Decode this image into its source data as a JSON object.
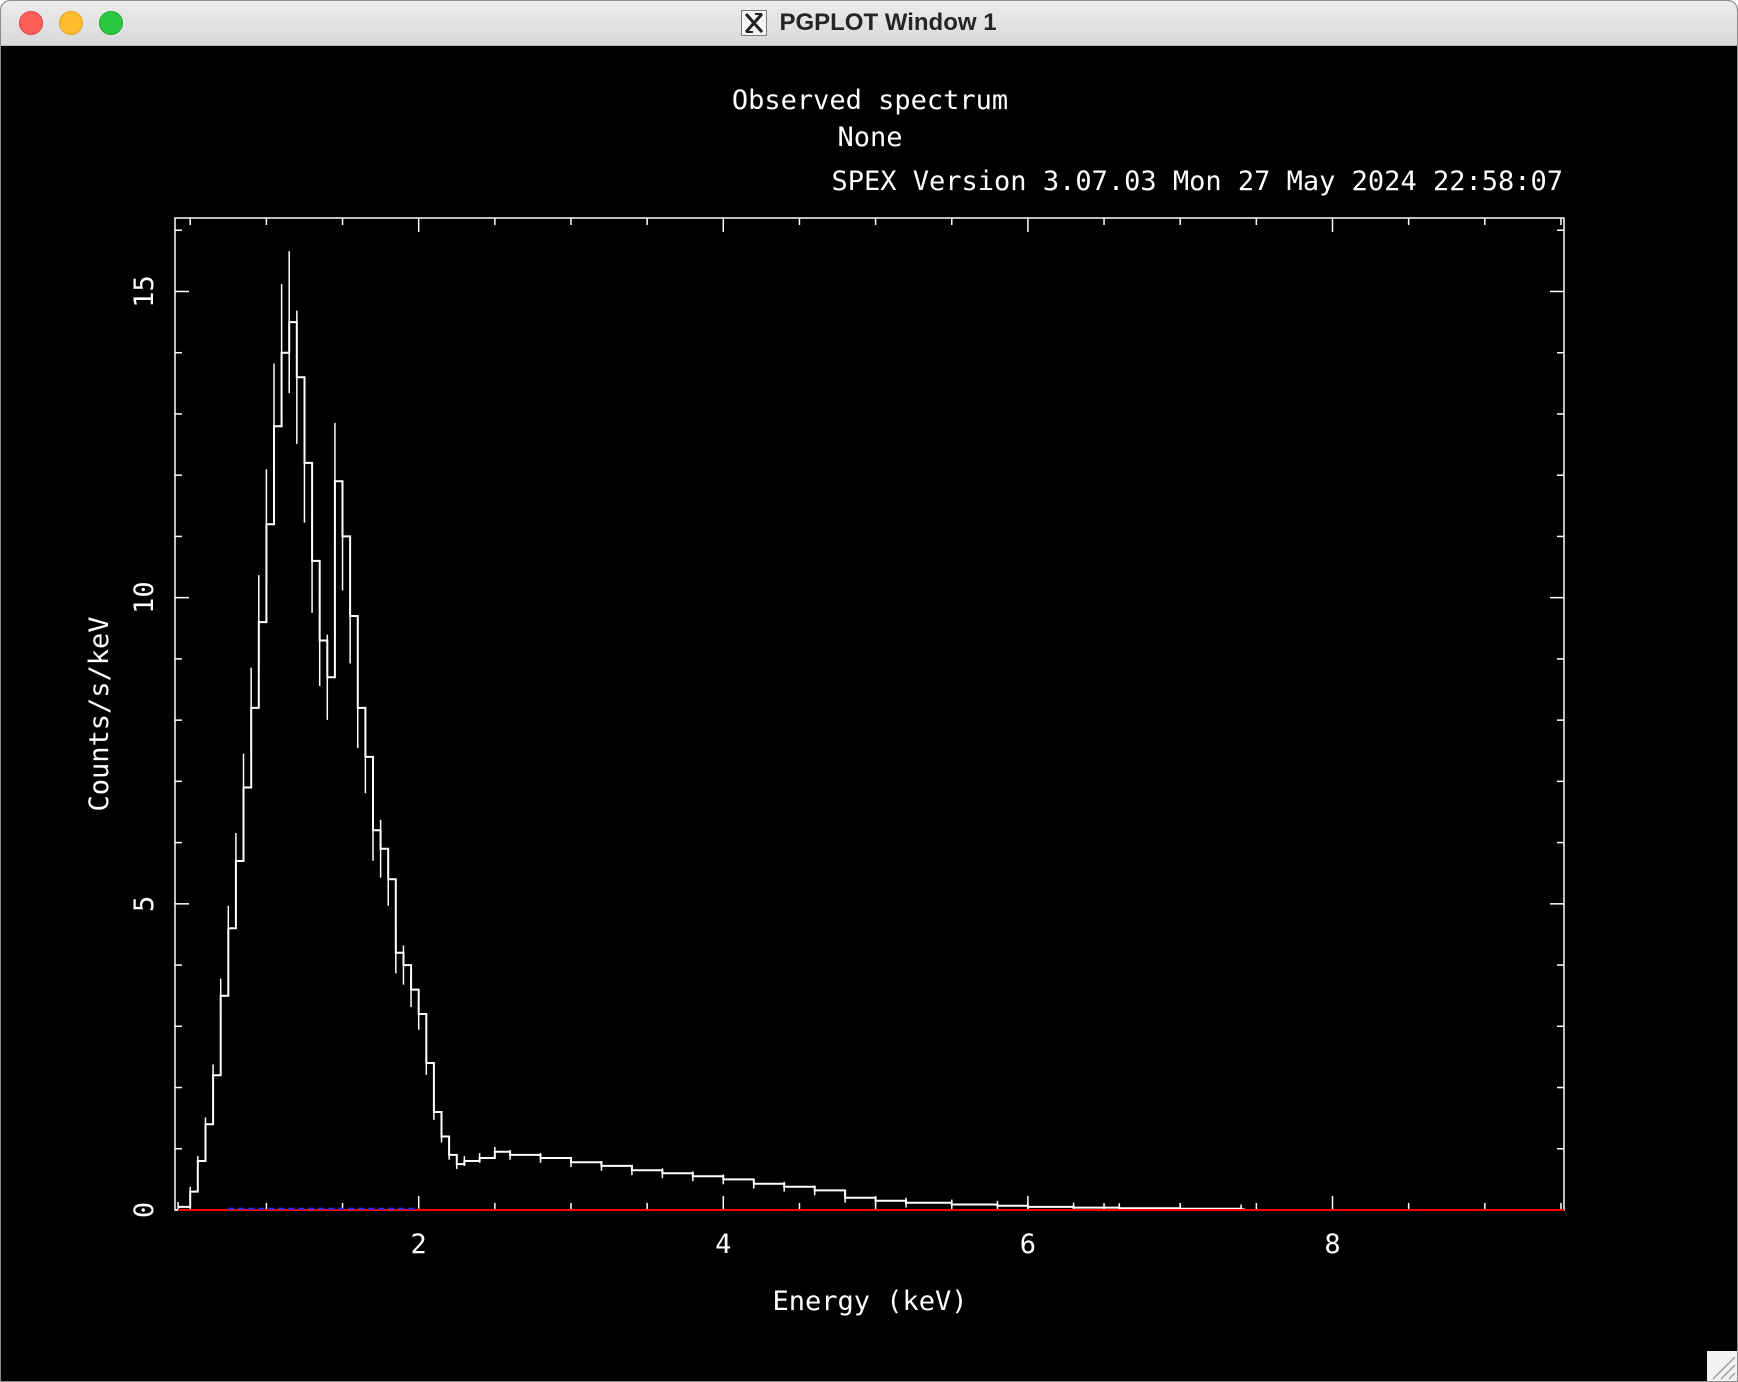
{
  "window": {
    "title": "PGPLOT Window 1",
    "icon": "x11-icon",
    "controls": [
      "close-button",
      "minimize-button",
      "zoom-button"
    ]
  },
  "header": {
    "line1": "Observed spectrum",
    "line2": "None",
    "line3": "SPEX Version 3.07.03  Mon 27 May 2024 22:58:07"
  },
  "colors": {
    "background": "#000000",
    "foreground": "#ffffff",
    "model": "#ff0000",
    "background_model": "#2a2aff"
  },
  "chart_data": {
    "type": "line",
    "title": "",
    "xlabel": "Energy (keV)",
    "ylabel": "Counts/s/keV",
    "xlim": [
      0.4,
      9.52
    ],
    "ylim": [
      0,
      16.2
    ],
    "xticks": [
      2,
      4,
      6,
      8
    ],
    "yticks": [
      0,
      5,
      10,
      15
    ],
    "grid": false,
    "series": [
      {
        "role": "data",
        "color": "#ffffff",
        "x": [
          0.42,
          0.5,
          0.55,
          0.6,
          0.65,
          0.7,
          0.75,
          0.8,
          0.85,
          0.9,
          0.95,
          1.0,
          1.05,
          1.1,
          1.15,
          1.2,
          1.25,
          1.3,
          1.35,
          1.4,
          1.45,
          1.5,
          1.55,
          1.6,
          1.65,
          1.7,
          1.75,
          1.8,
          1.85,
          1.9,
          1.95,
          2.0,
          2.05,
          2.1,
          2.15,
          2.2,
          2.25,
          2.3,
          2.4,
          2.5,
          2.6,
          2.8,
          3.0,
          3.2,
          3.4,
          3.6,
          3.8,
          4.0,
          4.2,
          4.4,
          4.6,
          4.8,
          5.0,
          5.2,
          5.5,
          5.8,
          6.0,
          6.3,
          6.6,
          7.0,
          7.4
        ],
        "y": [
          0.05,
          0.3,
          0.8,
          1.4,
          2.2,
          3.5,
          4.6,
          5.7,
          6.9,
          8.2,
          9.6,
          11.2,
          12.8,
          14.0,
          14.5,
          13.6,
          12.2,
          10.6,
          9.3,
          8.7,
          11.9,
          11.0,
          9.7,
          8.2,
          7.4,
          6.2,
          5.9,
          5.4,
          4.2,
          4.0,
          3.6,
          3.2,
          2.4,
          1.6,
          1.2,
          0.9,
          0.75,
          0.8,
          0.85,
          0.95,
          0.9,
          0.85,
          0.78,
          0.72,
          0.65,
          0.6,
          0.55,
          0.5,
          0.43,
          0.38,
          0.32,
          0.2,
          0.15,
          0.12,
          0.09,
          0.07,
          0.05,
          0.04,
          0.03,
          0.02,
          0.01
        ]
      },
      {
        "role": "model",
        "color": "#ff0000",
        "x": [
          0.42,
          9.52
        ],
        "y": [
          0.0,
          0.0
        ]
      },
      {
        "role": "background",
        "color": "#2a2aff",
        "x": [
          0.75,
          2.0
        ],
        "y": [
          0.02,
          0.02
        ]
      }
    ]
  }
}
